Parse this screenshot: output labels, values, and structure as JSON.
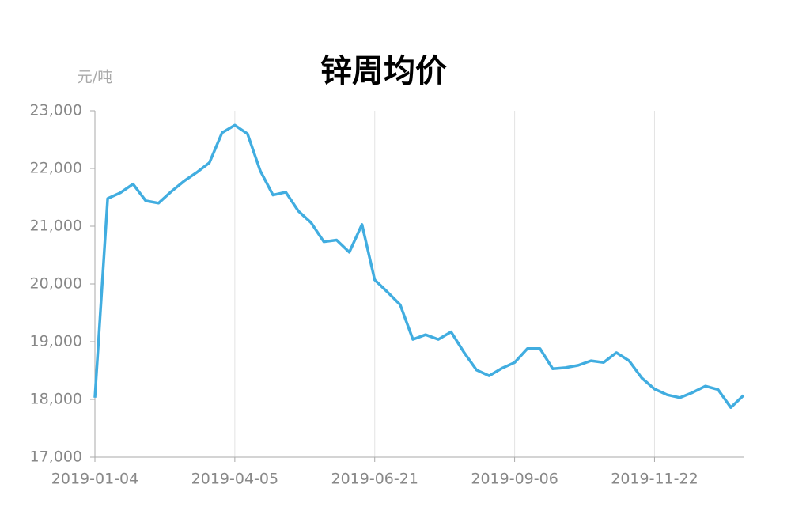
{
  "chart_data": {
    "type": "line",
    "title": "锌周均价",
    "y_label": "元/吨",
    "categories": [
      "2019-01-04",
      null,
      null,
      null,
      null,
      null,
      null,
      null,
      null,
      null,
      null,
      "2019-04-05",
      null,
      null,
      null,
      null,
      null,
      null,
      null,
      null,
      null,
      null,
      "2019-06-21",
      null,
      null,
      null,
      null,
      null,
      null,
      null,
      null,
      null,
      null,
      "2019-09-06",
      null,
      null,
      null,
      null,
      null,
      null,
      null,
      null,
      null,
      null,
      "2019-11-22",
      null,
      null,
      null,
      null,
      null,
      null,
      null
    ],
    "series": [
      {
        "name": "锌周均价",
        "color": "#41ade0",
        "values": [
          18030,
          21480,
          21580,
          21730,
          21440,
          21400,
          21600,
          21780,
          21930,
          22100,
          22620,
          22750,
          22600,
          21960,
          21540,
          21590,
          21260,
          21060,
          20730,
          20760,
          20550,
          21030,
          20070,
          19860,
          19640,
          19040,
          19120,
          19040,
          19170,
          18820,
          18510,
          18410,
          18540,
          18640,
          18880,
          18880,
          18530,
          18550,
          18590,
          18670,
          18640,
          18810,
          18670,
          18370,
          18180,
          18080,
          18030,
          18120,
          18230,
          18170,
          17860,
          18070
        ]
      }
    ],
    "ylim": [
      17000,
      23000
    ],
    "yticks": [
      {
        "value": 17000,
        "label": "17,000"
      },
      {
        "value": 18000,
        "label": "18,000"
      },
      {
        "value": 19000,
        "label": "19,000"
      },
      {
        "value": 20000,
        "label": "20,000"
      },
      {
        "value": 21000,
        "label": "21,000"
      },
      {
        "value": 22000,
        "label": "22,000"
      },
      {
        "value": 23000,
        "label": "23,000"
      }
    ],
    "grid": true
  }
}
